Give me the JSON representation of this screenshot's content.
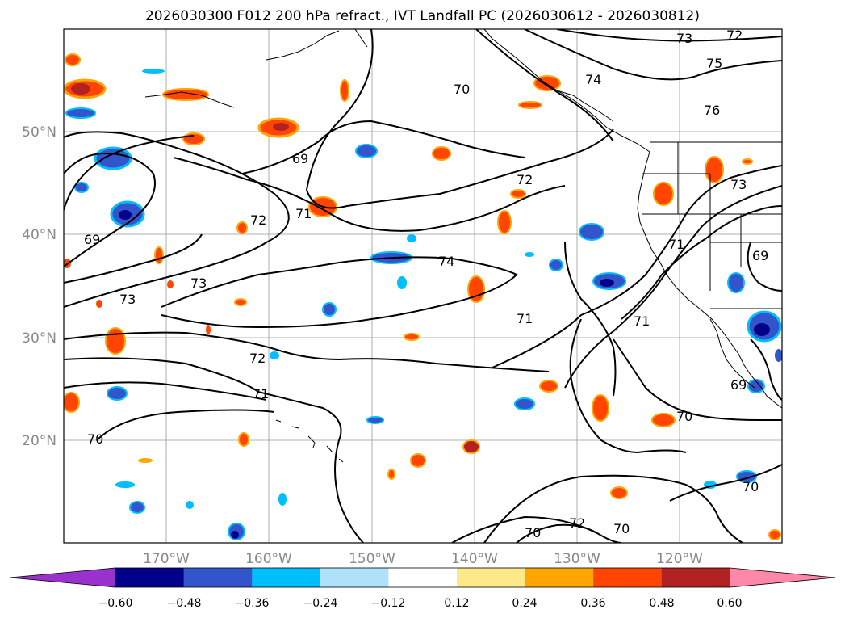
{
  "title": "2026030300 F012 200 hPa refract., IVT Landfall PC (2026030612 - 2026030812)",
  "map": {
    "lon_range": [
      -180,
      -110
    ],
    "lat_range": [
      10,
      60
    ],
    "lat_gridlines": [
      20,
      30,
      40,
      50
    ],
    "lon_gridlines": [
      -170,
      -160,
      -150,
      -140,
      -130,
      -120
    ],
    "lat_labels": [
      "20°N",
      "30°N",
      "40°N",
      "50°N"
    ],
    "lon_labels": [
      "170°W",
      "160°W",
      "150°W",
      "140°W",
      "130°W",
      "120°W"
    ],
    "grid": true
  },
  "contour_labels": [
    "73",
    "72",
    "75",
    "74",
    "70",
    "76",
    "69",
    "71",
    "72",
    "73",
    "69",
    "72",
    "71",
    "73",
    "73",
    "74",
    "72",
    "71",
    "72",
    "71",
    "70",
    "70",
    "69",
    "69",
    "70",
    "71",
    "70",
    "70"
  ],
  "colorbar": {
    "ticks": [
      "−0.60",
      "−0.48",
      "−0.36",
      "−0.24",
      "−0.12",
      "0.12",
      "0.24",
      "0.36",
      "0.48",
      "0.60"
    ],
    "colors": [
      "#9932cc",
      "#00008b",
      "#3355cc",
      "#00bfff",
      "#aee2fb",
      "#ffffff",
      "#fde98a",
      "#ffa500",
      "#ff4500",
      "#b22222",
      "#ff88aa"
    ]
  }
}
